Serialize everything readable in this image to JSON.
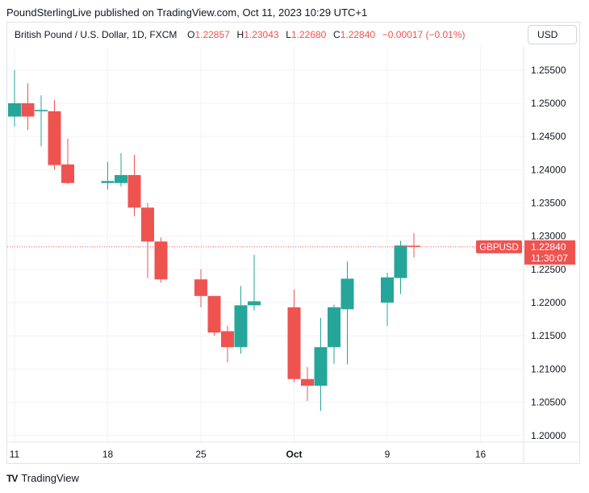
{
  "header": {
    "text": "PoundSterlingLive published on TradingView.com, Oct 11, 2023 10:29 UTC+1"
  },
  "ohlc": {
    "title": "British Pound / U.S. Dollar, 1D, FXCM",
    "o_label": "O",
    "o": "1.22857",
    "h_label": "H",
    "h": "1.23043",
    "l_label": "L",
    "l": "1.22680",
    "c_label": "C",
    "c": "1.22840",
    "change": "−0.00017 (−0.01%)"
  },
  "currency_button": "USD",
  "price_tag": {
    "symbol": "GBPUSD",
    "price": "1.22840",
    "countdown": "11:30:07"
  },
  "footer": {
    "logo": "TV",
    "brand": "TradingView"
  },
  "colors": {
    "up": "#26a69a",
    "down": "#ef5350",
    "grid": "#f0f3fa",
    "axis_text": "#131722"
  },
  "chart_data": {
    "type": "candlestick",
    "title": "British Pound / U.S. Dollar, 1D, FXCM",
    "x_tick_labels": [
      "11",
      "18",
      "25",
      "Oct",
      "9",
      "16"
    ],
    "y_tick_labels": [
      "1.25500",
      "1.25000",
      "1.24500",
      "1.24000",
      "1.23500",
      "1.23000",
      "1.22500",
      "1.22000",
      "1.21500",
      "1.21000",
      "1.20500",
      "1.20000"
    ],
    "ylim": [
      1.199,
      1.2585
    ],
    "grid": true,
    "last_price_line": 1.2284,
    "candles": [
      {
        "date": "2023-09-11",
        "o": 1.248,
        "h": 1.255,
        "l": 1.2465,
        "c": 1.25
      },
      {
        "date": "2023-09-12",
        "o": 1.25,
        "h": 1.253,
        "l": 1.246,
        "c": 1.248
      },
      {
        "date": "2023-09-13",
        "o": 1.2488,
        "h": 1.2512,
        "l": 1.2435,
        "c": 1.249
      },
      {
        "date": "2023-09-14",
        "o": 1.2488,
        "h": 1.2505,
        "l": 1.24,
        "c": 1.2407
      },
      {
        "date": "2023-09-15",
        "o": 1.2408,
        "h": 1.2447,
        "l": 1.2378,
        "c": 1.238
      },
      {
        "date": "2023-09-18",
        "o": 1.238,
        "h": 1.2412,
        "l": 1.237,
        "c": 1.2383
      },
      {
        "date": "2023-09-19",
        "o": 1.238,
        "h": 1.2425,
        "l": 1.2375,
        "c": 1.2392
      },
      {
        "date": "2023-09-20",
        "o": 1.2392,
        "h": 1.2422,
        "l": 1.233,
        "c": 1.2343
      },
      {
        "date": "2023-09-21",
        "o": 1.2343,
        "h": 1.235,
        "l": 1.2237,
        "c": 1.2292
      },
      {
        "date": "2023-09-22",
        "o": 1.2292,
        "h": 1.2298,
        "l": 1.223,
        "c": 1.2235
      },
      {
        "date": "2023-09-25",
        "o": 1.2235,
        "h": 1.225,
        "l": 1.2193,
        "c": 1.221
      },
      {
        "date": "2023-09-26",
        "o": 1.221,
        "h": 1.221,
        "l": 1.215,
        "c": 1.2155
      },
      {
        "date": "2023-09-27",
        "o": 1.2157,
        "h": 1.2165,
        "l": 1.211,
        "c": 1.2133
      },
      {
        "date": "2023-09-28",
        "o": 1.2133,
        "h": 1.2225,
        "l": 1.2123,
        "c": 1.2196
      },
      {
        "date": "2023-09-29",
        "o": 1.2196,
        "h": 1.2272,
        "l": 1.2188,
        "c": 1.2202
      },
      {
        "date": "2023-10-02",
        "o": 1.2193,
        "h": 1.222,
        "l": 1.208,
        "c": 1.2085
      },
      {
        "date": "2023-10-03",
        "o": 1.2085,
        "h": 1.2103,
        "l": 1.2052,
        "c": 1.2075
      },
      {
        "date": "2023-10-04",
        "o": 1.2075,
        "h": 1.2177,
        "l": 1.2037,
        "c": 1.2133
      },
      {
        "date": "2023-10-05",
        "o": 1.2133,
        "h": 1.2197,
        "l": 1.2108,
        "c": 1.2193
      },
      {
        "date": "2023-10-06",
        "o": 1.219,
        "h": 1.2262,
        "l": 1.2107,
        "c": 1.2236
      },
      {
        "date": "2023-10-09",
        "o": 1.22,
        "h": 1.2245,
        "l": 1.2165,
        "c": 1.2238
      },
      {
        "date": "2023-10-10",
        "o": 1.2237,
        "h": 1.2293,
        "l": 1.2213,
        "c": 1.2286
      },
      {
        "date": "2023-10-11",
        "o": 1.22857,
        "h": 1.23043,
        "l": 1.2268,
        "c": 1.2284
      }
    ]
  }
}
